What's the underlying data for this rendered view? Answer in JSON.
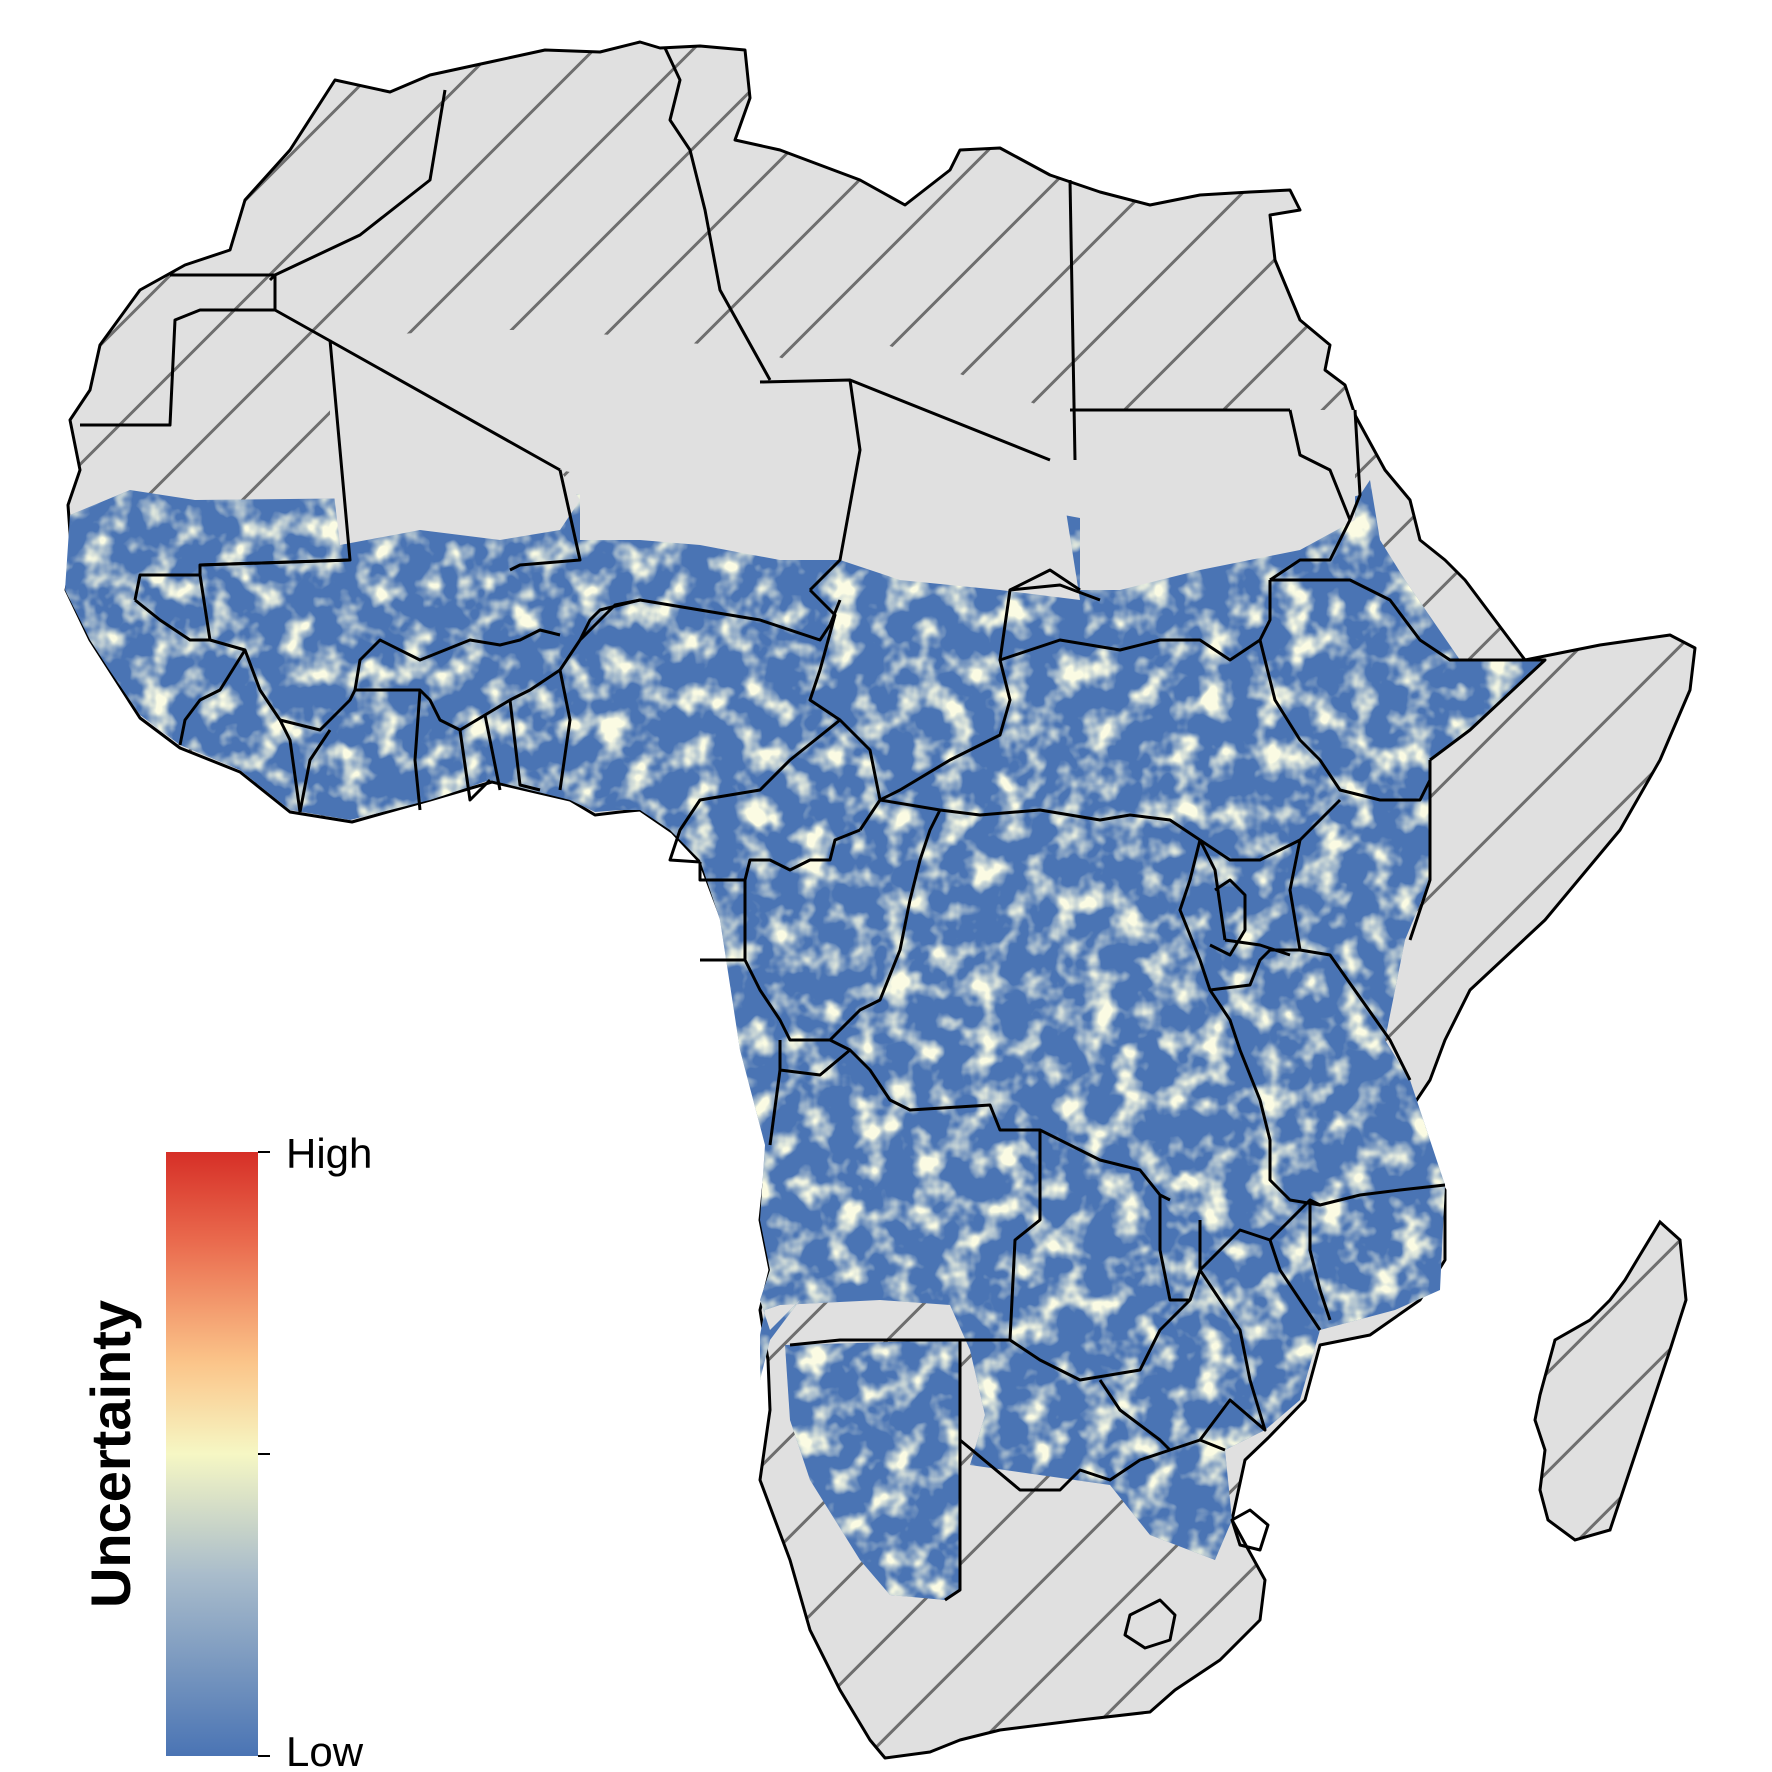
{
  "map": {
    "legend": {
      "title": "Uncertainty",
      "high_label": "High",
      "low_label": "Low",
      "gradient_colors": [
        "#4a74b4",
        "#a9bccb",
        "#f6f7c4",
        "#fbc58a",
        "#ea6b4e",
        "#d62f27"
      ]
    },
    "colors": {
      "excluded_fill": "#e0e0e0",
      "hatch_stroke": "#6e6e6e",
      "border": "#000000",
      "low_uncertainty": "#4a74b4",
      "mid_uncertainty": "#f6f7c4"
    }
  }
}
